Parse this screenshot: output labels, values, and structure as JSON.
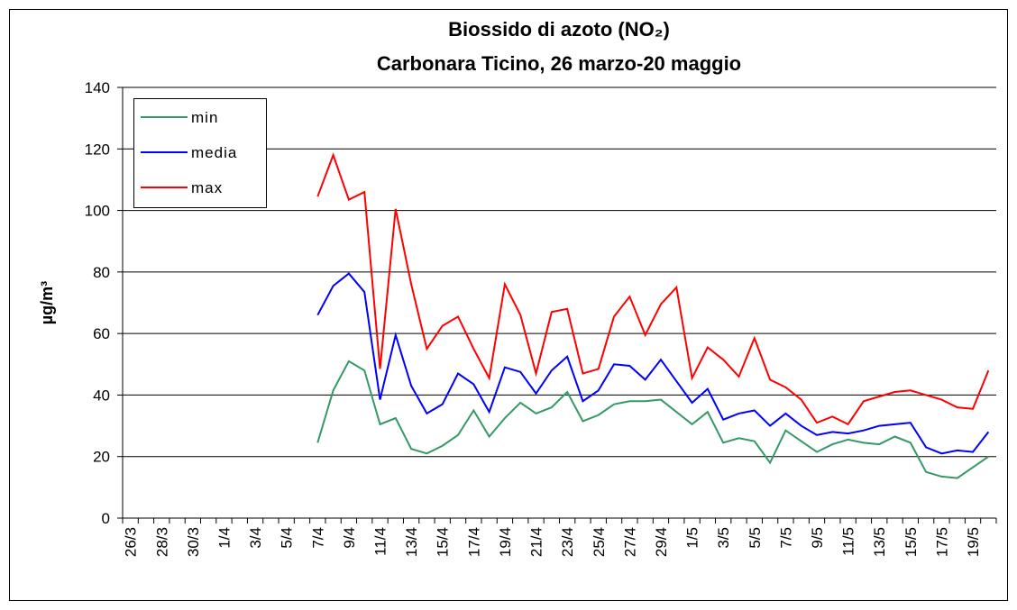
{
  "chart_data": {
    "type": "line",
    "title": "Biossido di azoto (NO₂)",
    "subtitle": "Carbonara Ticino, 26 marzo-20  maggio",
    "y_label": "µg/m³",
    "categories": [
      "26/3",
      null,
      "28/3",
      null,
      "30/3",
      null,
      "1/4",
      null,
      "3/4",
      null,
      "5/4",
      null,
      "7/4",
      null,
      "9/4",
      null,
      "11/4",
      null,
      "13/4",
      null,
      "15/4",
      null,
      "17/4",
      null,
      "19/4",
      null,
      "21/4",
      null,
      "23/4",
      null,
      "25/4",
      null,
      "27/4",
      null,
      "29/4",
      null,
      "1/5",
      null,
      "3/5",
      null,
      "5/5",
      null,
      "7/5",
      null,
      "9/5",
      null,
      "11/5",
      null,
      "13/5",
      null,
      "15/5",
      null,
      "17/5",
      null,
      "19/5",
      null
    ],
    "series": [
      {
        "name": "min",
        "color": "#339966",
        "values": [
          null,
          null,
          null,
          null,
          null,
          null,
          null,
          null,
          null,
          null,
          null,
          null,
          24.5,
          41.5,
          51,
          48,
          30.5,
          32.5,
          22.5,
          21,
          23.5,
          27,
          35,
          26.5,
          32.5,
          37.5,
          34,
          36,
          41,
          31.5,
          33.5,
          37,
          38,
          38,
          38.5,
          34.5,
          30.5,
          34.5,
          24.5,
          26,
          25,
          18,
          28.5,
          25,
          21.5,
          24,
          25.5,
          24.5,
          24,
          26.5,
          24.5,
          15,
          13.5,
          13,
          16.5,
          20
        ]
      },
      {
        "name": "media",
        "color": "#0000ff",
        "values": [
          null,
          null,
          null,
          null,
          null,
          null,
          null,
          null,
          null,
          null,
          null,
          null,
          66,
          75.5,
          79.5,
          73.5,
          38.5,
          59.5,
          43,
          34,
          37,
          47,
          43.5,
          34.5,
          49,
          47.5,
          40.5,
          48,
          52.5,
          38,
          41.5,
          50,
          49.5,
          45,
          51.5,
          44.5,
          37.5,
          42,
          32,
          34,
          35,
          30,
          34,
          30,
          27,
          28,
          27.5,
          28.5,
          30,
          30.5,
          31,
          23,
          21,
          22,
          21.5,
          28
        ]
      },
      {
        "name": "max",
        "color": "#ff0000",
        "values": [
          null,
          null,
          null,
          null,
          null,
          null,
          null,
          null,
          null,
          null,
          null,
          null,
          104.5,
          118,
          103.5,
          106,
          48.5,
          100.5,
          76,
          55,
          62.5,
          65.5,
          55,
          45.5,
          76,
          66,
          47,
          67,
          68,
          47,
          48.5,
          65.5,
          72,
          59.5,
          69.5,
          75,
          45.5,
          55.5,
          51.5,
          46,
          58.5,
          45,
          42.5,
          38.5,
          31,
          33,
          30.5,
          38,
          39.5,
          41,
          41.5,
          40,
          38.5,
          36,
          35.5,
          48
        ]
      }
    ],
    "ylim": [
      0,
      140
    ],
    "yticks": [
      0,
      20,
      40,
      60,
      80,
      100,
      120,
      140
    ],
    "grid": true,
    "legend": "top-left"
  }
}
